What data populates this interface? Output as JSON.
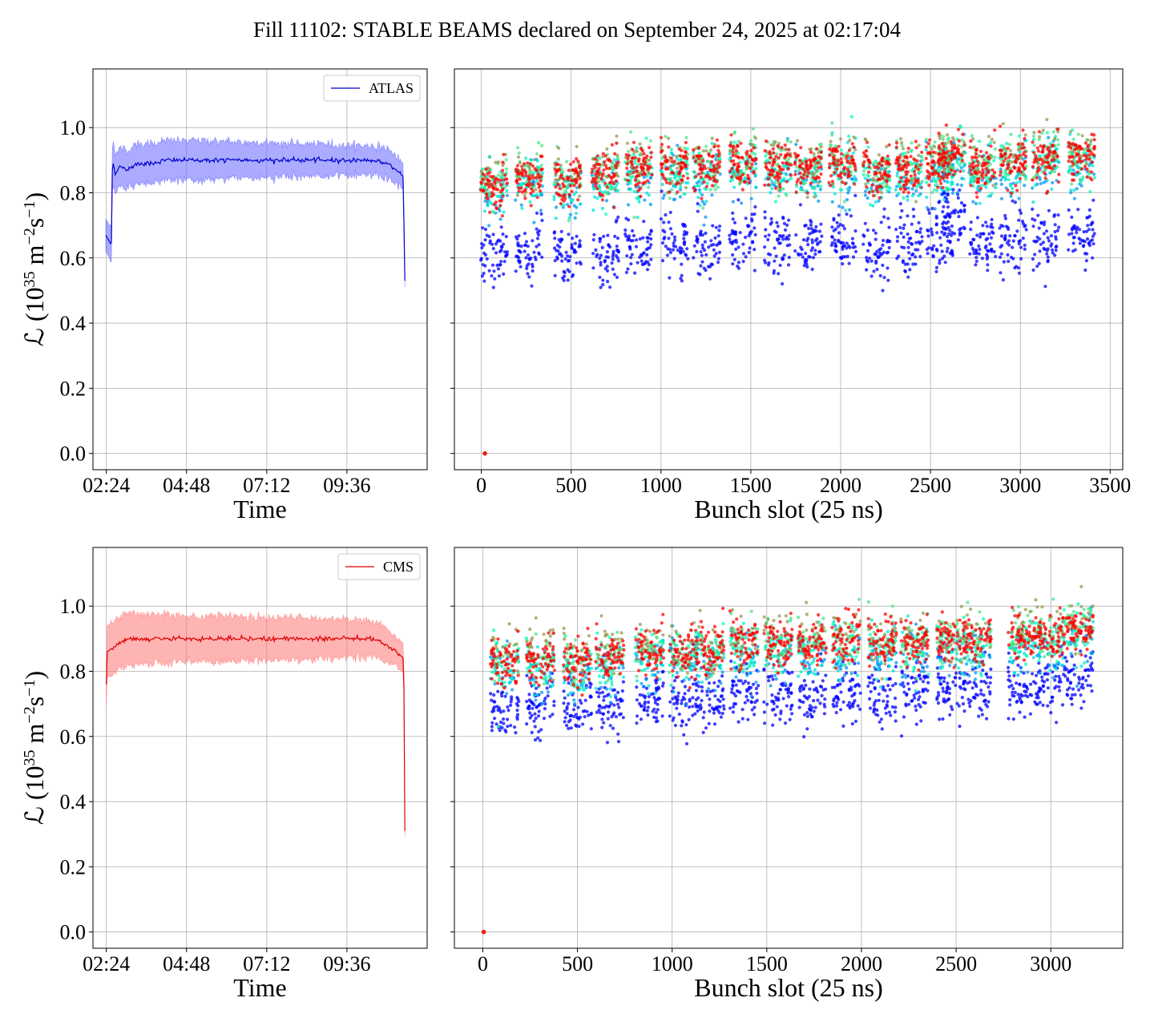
{
  "figure": {
    "title": "Fill 11102: STABLE BEAMS declared on September 24, 2025 at 02:17:04"
  },
  "chart_data": [
    {
      "type": "line",
      "panel": "top-left",
      "title": "",
      "xlabel": "Time",
      "ylabel_parts": [
        "ℒ (10",
        "35",
        " m",
        "−2",
        "s",
        "−1",
        ")"
      ],
      "x_ticks": [
        "02:24",
        "04:48",
        "07:12",
        "09:36"
      ],
      "x_range": [
        "02:00",
        "12:00"
      ],
      "ylim": [
        -0.05,
        1.18
      ],
      "y_ticks": [
        "0.0",
        "0.2",
        "0.4",
        "0.6",
        "0.8",
        "1.0"
      ],
      "grid": true,
      "legend": {
        "position": "top-right",
        "label": "ATLAS"
      },
      "color": "#0000cc",
      "band_color": "#6666ff",
      "series": [
        {
          "label": "ATLAS",
          "x": [
            "02:23",
            "02:33",
            "02:35",
            "02:40",
            "02:47",
            "03:00",
            "03:20",
            "03:45",
            "04:10",
            "04:48",
            "05:30",
            "06:30",
            "07:12",
            "08:10",
            "09:00",
            "09:36",
            "10:20",
            "10:50",
            "11:17",
            "11:20"
          ],
          "y": [
            0.67,
            0.64,
            0.9,
            0.86,
            0.88,
            0.87,
            0.89,
            0.89,
            0.9,
            0.9,
            0.9,
            0.9,
            0.9,
            0.9,
            0.9,
            0.9,
            0.9,
            0.89,
            0.85,
            0.53
          ],
          "band_half_width": [
            0.05,
            0.05,
            0.07,
            0.06,
            0.06,
            0.06,
            0.06,
            0.06,
            0.06,
            0.06,
            0.06,
            0.055,
            0.055,
            0.05,
            0.05,
            0.045,
            0.045,
            0.045,
            0.04,
            0.02
          ]
        }
      ]
    },
    {
      "type": "scatter",
      "panel": "top-right",
      "title": "",
      "xlabel": "Bunch slot (25 ns)",
      "x_ticks": [
        0,
        500,
        1000,
        1500,
        2000,
        2500,
        3000,
        3500
      ],
      "xlim": [
        -150,
        3570
      ],
      "ylim": [
        -0.05,
        1.18
      ],
      "grid": true,
      "colormap": "rainbow",
      "trains": [
        70,
        265,
        480,
        690,
        875,
        1075,
        1255,
        1455,
        1650,
        1820,
        2010,
        2200,
        2380,
        2550,
        2620,
        2790,
        2960,
        3140,
        3340
      ],
      "train_width": 150,
      "main_level": [
        0.84,
        0.86,
        0.85,
        0.87,
        0.89,
        0.9,
        0.89,
        0.91,
        0.9,
        0.89,
        0.9,
        0.88,
        0.89,
        0.9,
        0.93,
        0.9,
        0.91,
        0.92,
        0.92
      ],
      "low_level": [
        0.62,
        0.63,
        0.62,
        0.63,
        0.65,
        0.66,
        0.66,
        0.67,
        0.66,
        0.66,
        0.67,
        0.65,
        0.67,
        0.67,
        0.75,
        0.66,
        0.66,
        0.67,
        0.68
      ],
      "outlier_point": {
        "x": 20,
        "y": 0.0
      }
    },
    {
      "type": "line",
      "panel": "bottom-left",
      "title": "",
      "xlabel": "Time",
      "ylabel_parts": [
        "ℒ (10",
        "35",
        " m",
        "−2",
        "s",
        "−1",
        ")"
      ],
      "x_ticks": [
        "02:24",
        "04:48",
        "07:12",
        "09:36"
      ],
      "x_range": [
        "02:00",
        "12:00"
      ],
      "ylim": [
        -0.05,
        1.18
      ],
      "y_ticks": [
        "0.0",
        "0.2",
        "0.4",
        "0.6",
        "0.8",
        "1.0"
      ],
      "grid": true,
      "legend": {
        "position": "top-right",
        "label": "CMS"
      },
      "color": "#dd0000",
      "band_color": "#ff7777",
      "series": [
        {
          "label": "CMS",
          "x": [
            "02:24",
            "02:25",
            "02:35",
            "02:50",
            "03:10",
            "03:35",
            "04:00",
            "04:48",
            "05:30",
            "06:30",
            "07:12",
            "08:10",
            "09:00",
            "09:36",
            "10:20",
            "10:50",
            "11:18",
            "11:20"
          ],
          "y": [
            0.76,
            0.86,
            0.87,
            0.89,
            0.9,
            0.9,
            0.9,
            0.9,
            0.9,
            0.9,
            0.9,
            0.9,
            0.9,
            0.9,
            0.9,
            0.88,
            0.84,
            0.31
          ],
          "band_half_width": [
            0.07,
            0.08,
            0.08,
            0.08,
            0.08,
            0.075,
            0.075,
            0.07,
            0.07,
            0.07,
            0.065,
            0.065,
            0.06,
            0.06,
            0.055,
            0.05,
            0.045,
            0.02
          ]
        }
      ]
    },
    {
      "type": "scatter",
      "panel": "bottom-right",
      "title": "",
      "xlabel": "Bunch slot (25 ns)",
      "x_ticks": [
        0,
        500,
        1000,
        1500,
        2000,
        2500,
        3000
      ],
      "xlim": [
        -150,
        3380
      ],
      "ylim": [
        -0.05,
        1.18
      ],
      "grid": true,
      "colormap": "rainbow",
      "trains": [
        115,
        305,
        500,
        670,
        880,
        1060,
        1200,
        1380,
        1560,
        1740,
        1920,
        2110,
        2280,
        2470,
        2610,
        2850,
        3000,
        3150
      ],
      "train_width": 150,
      "main_level": [
        0.85,
        0.85,
        0.84,
        0.86,
        0.88,
        0.87,
        0.88,
        0.9,
        0.9,
        0.9,
        0.91,
        0.9,
        0.9,
        0.91,
        0.91,
        0.92,
        0.92,
        0.94
      ],
      "low_level": [
        0.7,
        0.7,
        0.7,
        0.71,
        0.73,
        0.72,
        0.73,
        0.75,
        0.74,
        0.74,
        0.75,
        0.73,
        0.74,
        0.75,
        0.76,
        0.76,
        0.77,
        0.78
      ],
      "outlier_point": {
        "x": 5,
        "y": 0.0
      }
    }
  ]
}
